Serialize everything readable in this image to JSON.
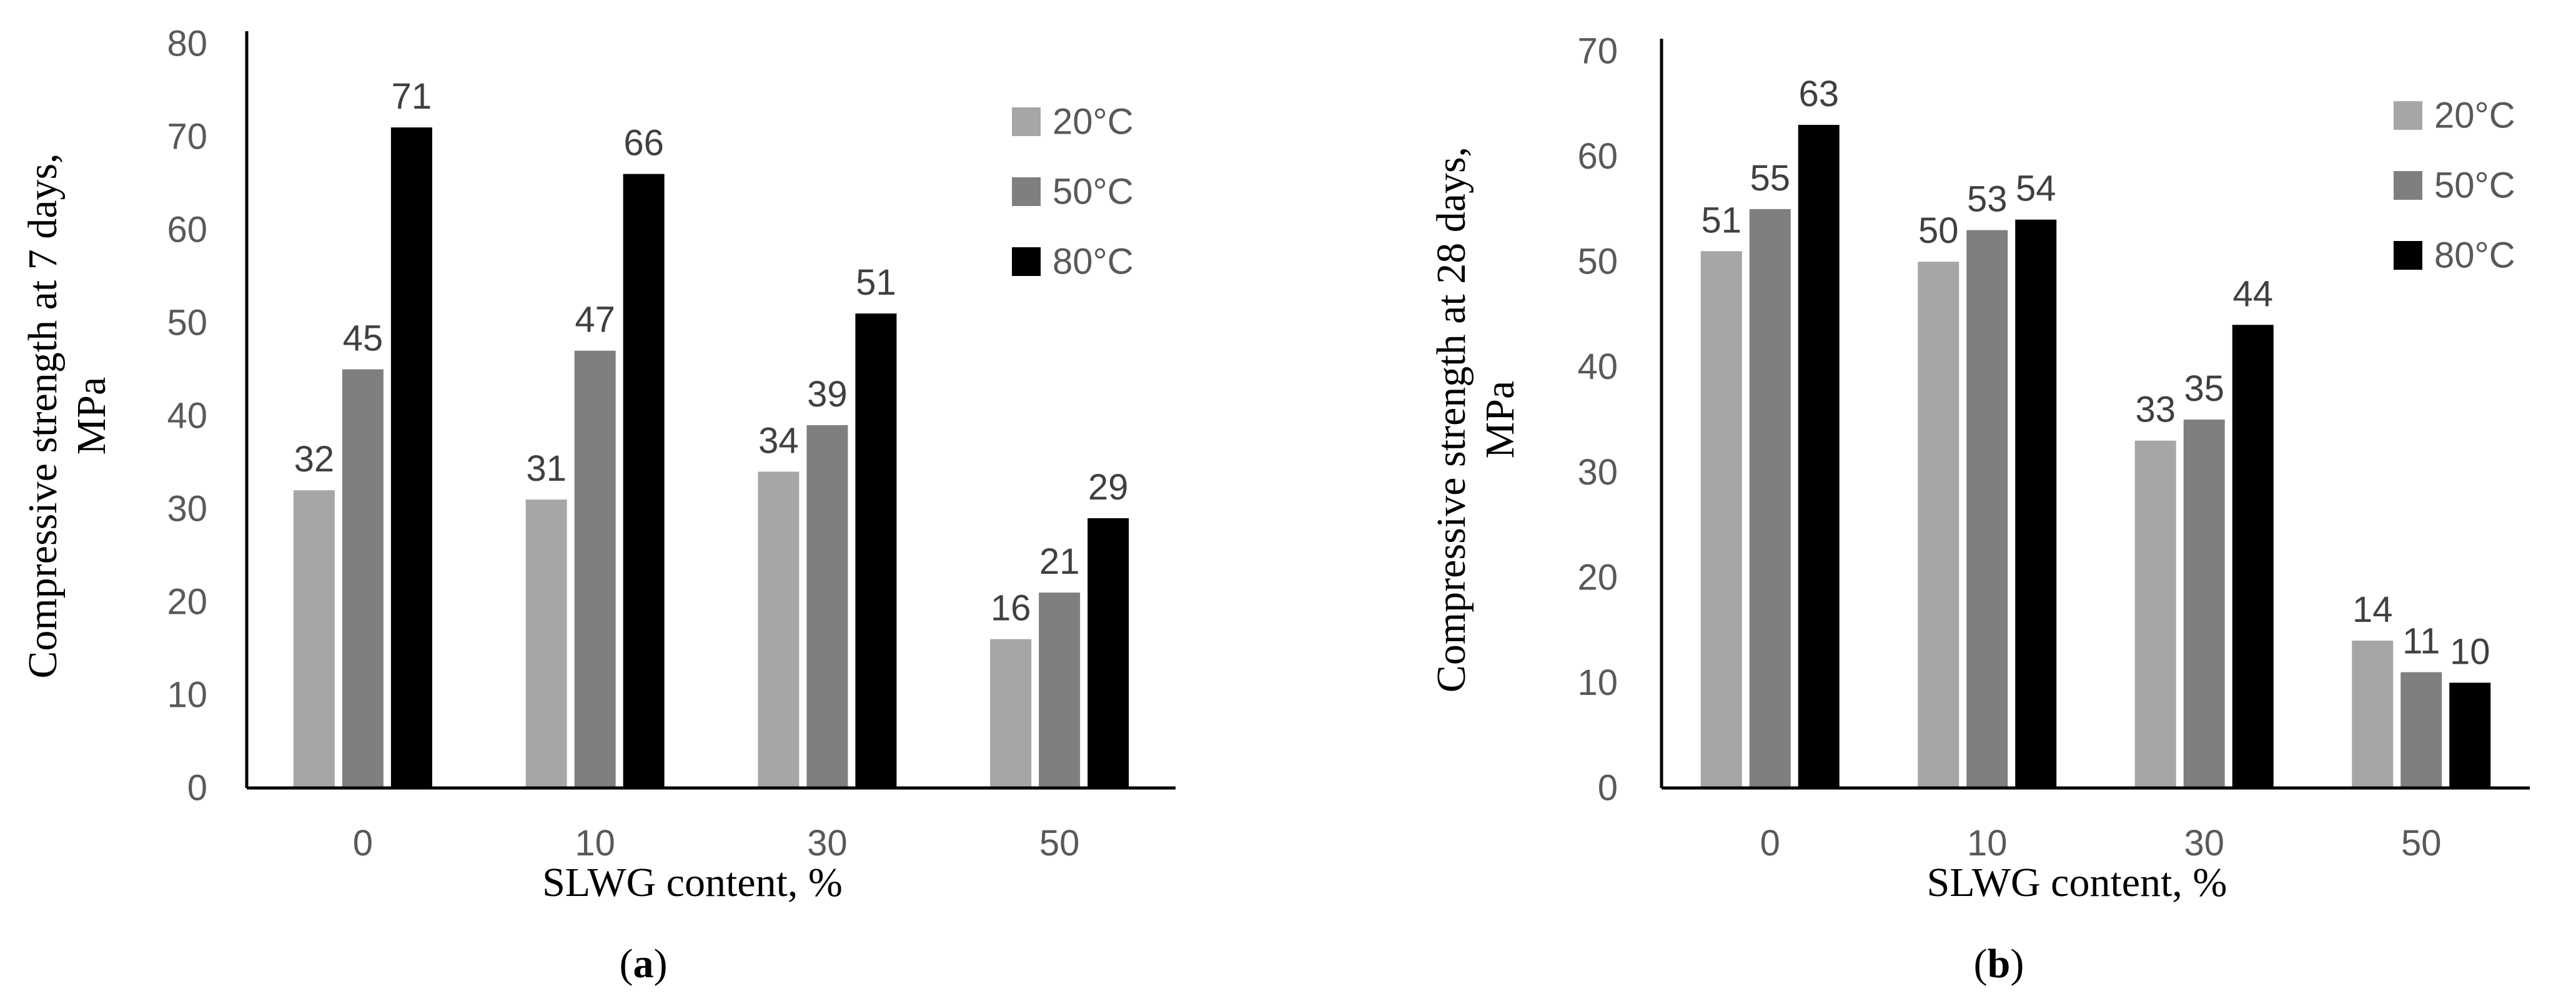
{
  "chart_data": [
    {
      "type": "bar",
      "panel": "(a)",
      "panel_letter": "a",
      "categories": [
        "0",
        "10",
        "30",
        "50"
      ],
      "series": [
        {
          "name": "20°C",
          "color": "#a6a6a6",
          "values": [
            32,
            31,
            34,
            16
          ]
        },
        {
          "name": "50°C",
          "color": "#7f7f7f",
          "values": [
            45,
            47,
            39,
            21
          ]
        },
        {
          "name": "80°C",
          "color": "#000000",
          "values": [
            71,
            66,
            51,
            29
          ]
        }
      ],
      "xlabel": "SLWG content, %",
      "ylabel_line1": "Compressive strength at 7 days,",
      "ylabel_line2": "MPa",
      "ylim": [
        0,
        80
      ],
      "yticks": [
        0,
        10,
        20,
        30,
        40,
        50,
        60,
        70,
        80
      ],
      "legend_position": "top-right",
      "grid": false
    },
    {
      "type": "bar",
      "panel": "(b)",
      "panel_letter": "b",
      "categories": [
        "0",
        "10",
        "30",
        "50"
      ],
      "series": [
        {
          "name": "20°C",
          "color": "#a6a6a6",
          "values": [
            51,
            50,
            33,
            14
          ]
        },
        {
          "name": "50°C",
          "color": "#7f7f7f",
          "values": [
            55,
            53,
            35,
            11
          ]
        },
        {
          "name": "80°C",
          "color": "#000000",
          "values": [
            63,
            54,
            44,
            10
          ]
        }
      ],
      "xlabel": "SLWG content, %",
      "ylabel_line1": "Compressive strength at 28 days,",
      "ylabel_line2": "MPa",
      "ylim": [
        0,
        70
      ],
      "yticks": [
        0,
        10,
        20,
        30,
        40,
        50,
        60,
        70
      ],
      "legend_position": "top-right",
      "grid": false
    }
  ]
}
